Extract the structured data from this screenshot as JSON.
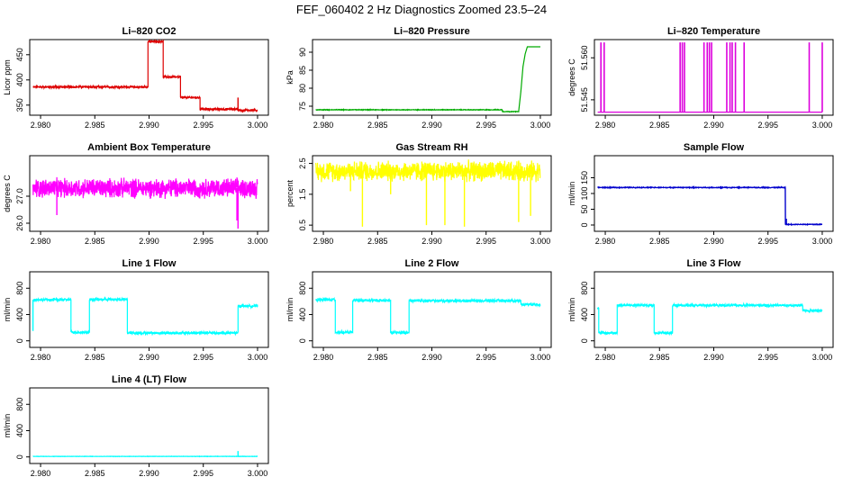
{
  "page_title": "FEF_060402  2 Hz Diagnostics Zoomed 23.5–24",
  "chart_data": [
    {
      "type": "line",
      "title": "Li–820 CO2",
      "ylabel": "Licor ppm",
      "color": "#dd0000",
      "xlim": [
        2.979,
        3.001
      ],
      "ylim": [
        330,
        480
      ],
      "xticks": [
        2.98,
        2.985,
        2.99,
        2.995,
        3.0
      ],
      "xticklabels": [
        "2.980",
        "2.985",
        "2.990",
        "2.995",
        "3.000"
      ],
      "yticks": [
        350,
        400,
        450
      ],
      "yticklabels": [
        "350",
        "400",
        "450"
      ],
      "noise": 2.5,
      "segments": [
        [
          2.9793,
          2.9899,
          386
        ],
        [
          2.9899,
          2.9913,
          476
        ],
        [
          2.9913,
          2.9929,
          406
        ],
        [
          2.9929,
          2.9947,
          365
        ],
        [
          2.9947,
          2.9982,
          342
        ],
        [
          2.9982,
          3.0,
          340
        ]
      ],
      "spikes": [
        [
          2.9982,
          365
        ]
      ]
    },
    {
      "type": "line",
      "title": "Li–820 Pressure",
      "ylabel": "kPa",
      "color": "#00aa00",
      "xlim": [
        2.979,
        3.001
      ],
      "ylim": [
        72.5,
        93.5
      ],
      "xticks": [
        2.98,
        2.985,
        2.99,
        2.995,
        3.0
      ],
      "xticklabels": [
        "2.980",
        "2.985",
        "2.990",
        "2.995",
        "3.000"
      ],
      "yticks": [
        75,
        80,
        85,
        90
      ],
      "yticklabels": [
        "75",
        "80",
        "85",
        "90"
      ],
      "noise": 0.1,
      "segments": [
        [
          2.9793,
          2.9965,
          74
        ],
        [
          2.9965,
          2.998,
          73.5
        ]
      ],
      "ramp": [
        [
          2.998,
          73.5
        ],
        [
          2.9982,
          79
        ],
        [
          2.9984,
          86
        ],
        [
          2.9986,
          89.5
        ],
        [
          2.9988,
          91.5
        ],
        [
          3.0,
          91.5
        ]
      ]
    },
    {
      "type": "line",
      "title": "Li–820 Temperature",
      "ylabel": "degrees C",
      "color": "#dd00dd",
      "xlim": [
        2.979,
        3.001
      ],
      "ylim": [
        51.5395,
        51.5665
      ],
      "xticks": [
        2.98,
        2.985,
        2.99,
        2.995,
        3.0
      ],
      "xticklabels": [
        "2.980",
        "2.985",
        "2.990",
        "2.995",
        "3.000"
      ],
      "yticks": [
        51.545,
        51.56
      ],
      "yticklabels": [
        "51.545",
        "51.560"
      ],
      "noise": 0,
      "segments": [
        [
          2.9793,
          3.0,
          51.5406
        ]
      ],
      "pulses": [
        2.9796,
        2.9799,
        2.9869,
        2.9871,
        2.9873,
        2.9891,
        2.9894,
        2.9896,
        2.9898,
        2.9912,
        2.9915,
        2.9917,
        2.992,
        2.9928,
        2.9988,
        3.0
      ],
      "pulse_top": 51.5655
    },
    {
      "type": "line",
      "title": "Ambient Box Temperature",
      "ylabel": "degrees C",
      "color": "#ff00ff",
      "xlim": [
        2.979,
        3.001
      ],
      "ylim": [
        25.7,
        28.5
      ],
      "xticks": [
        2.98,
        2.985,
        2.99,
        2.995,
        3.0
      ],
      "xticklabels": [
        "2.980",
        "2.985",
        "2.990",
        "2.995",
        "3.000"
      ],
      "yticks": [
        26.0,
        27.0
      ],
      "yticklabels": [
        "26.0",
        "27.0"
      ],
      "noise": 0.42,
      "segments": [
        [
          2.9793,
          3.0,
          27.3
        ]
      ],
      "spikes": [
        [
          2.9815,
          26.3
        ],
        [
          2.9981,
          26.1
        ],
        [
          2.9982,
          25.8
        ]
      ]
    },
    {
      "type": "line",
      "title": "Gas Stream RH",
      "ylabel": "percent",
      "color": "#ffff00",
      "xlim": [
        2.979,
        3.001
      ],
      "ylim": [
        0.3,
        2.75
      ],
      "xticks": [
        2.98,
        2.985,
        2.99,
        2.995,
        3.0
      ],
      "xticklabels": [
        "2.980",
        "2.985",
        "2.990",
        "2.995",
        "3.000"
      ],
      "yticks": [
        0.5,
        1.5,
        2.5
      ],
      "yticklabels": [
        "0.5",
        "1.5",
        "2.5"
      ],
      "noise": 0.38,
      "segments": [
        [
          2.9793,
          3.0,
          2.25
        ]
      ],
      "spikes": [
        [
          2.9836,
          0.45
        ],
        [
          2.9895,
          0.5
        ],
        [
          2.9912,
          0.5
        ],
        [
          2.993,
          0.45
        ],
        [
          2.998,
          0.6
        ],
        [
          2.9991,
          0.8
        ],
        [
          2.9862,
          1.5
        ],
        [
          2.9825,
          1.6
        ]
      ]
    },
    {
      "type": "line",
      "title": "Sample Flow",
      "ylabel": "ml/min",
      "color": "#0000cc",
      "xlim": [
        2.979,
        3.001
      ],
      "ylim": [
        -20,
        220
      ],
      "xticks": [
        2.98,
        2.985,
        2.99,
        2.995,
        3.0
      ],
      "xticklabels": [
        "2.980",
        "2.985",
        "2.990",
        "2.995",
        "3.000"
      ],
      "yticks": [
        0,
        50,
        100,
        150
      ],
      "yticklabels": [
        "0",
        "50",
        "100",
        "150"
      ],
      "noise": 1.5,
      "segments": [
        [
          2.9793,
          2.9966,
          119
        ],
        [
          2.9966,
          3.0,
          2
        ]
      ],
      "ramp": [
        [
          2.9966,
          119
        ],
        [
          2.9967,
          20
        ],
        [
          2.997,
          4
        ]
      ]
    },
    {
      "type": "line",
      "title": "Line 1 Flow",
      "ylabel": "ml/min",
      "color": "#00ffff",
      "xlim": [
        2.979,
        3.001
      ],
      "ylim": [
        -100,
        1050
      ],
      "xticks": [
        2.98,
        2.985,
        2.99,
        2.995,
        3.0
      ],
      "xticklabels": [
        "2.980",
        "2.985",
        "2.990",
        "2.995",
        "3.000"
      ],
      "yticks": [
        0,
        400,
        800
      ],
      "yticklabels": [
        "0",
        "400",
        "800"
      ],
      "noise": 25,
      "segments": [
        [
          2.9793,
          2.9828,
          625
        ],
        [
          2.9828,
          2.9845,
          130
        ],
        [
          2.9845,
          2.988,
          630
        ],
        [
          2.988,
          2.9982,
          120
        ],
        [
          2.9982,
          3.0,
          530
        ]
      ],
      "spikes": [
        [
          2.9793,
          150
        ]
      ]
    },
    {
      "type": "line",
      "title": "Line 2 Flow",
      "ylabel": "ml/min",
      "color": "#00ffff",
      "xlim": [
        2.979,
        3.001
      ],
      "ylim": [
        -100,
        1050
      ],
      "xticks": [
        2.98,
        2.985,
        2.99,
        2.995,
        3.0
      ],
      "xticklabels": [
        "2.980",
        "2.985",
        "2.990",
        "2.995",
        "3.000"
      ],
      "yticks": [
        0,
        400,
        800
      ],
      "yticklabels": [
        "0",
        "400",
        "800"
      ],
      "noise": 25,
      "segments": [
        [
          2.9793,
          2.9811,
          625
        ],
        [
          2.9811,
          2.9827,
          130
        ],
        [
          2.9827,
          2.9862,
          615
        ],
        [
          2.9862,
          2.9879,
          125
        ],
        [
          2.9879,
          2.9982,
          610
        ],
        [
          2.9982,
          3.0,
          555
        ]
      ]
    },
    {
      "type": "line",
      "title": "Line 3 Flow",
      "ylabel": "ml/min",
      "color": "#00ffff",
      "xlim": [
        2.979,
        3.001
      ],
      "ylim": [
        -100,
        1050
      ],
      "xticks": [
        2.98,
        2.985,
        2.99,
        2.995,
        3.0
      ],
      "xticklabels": [
        "2.980",
        "2.985",
        "2.990",
        "2.995",
        "3.000"
      ],
      "yticks": [
        0,
        400,
        800
      ],
      "yticklabels": [
        "0",
        "400",
        "800"
      ],
      "noise": 25,
      "segments": [
        [
          2.9793,
          2.9794,
          500
        ],
        [
          2.9794,
          2.9811,
          120
        ],
        [
          2.9811,
          2.9845,
          540
        ],
        [
          2.9845,
          2.9862,
          120
        ],
        [
          2.9862,
          2.9982,
          540
        ],
        [
          2.9982,
          3.0,
          460
        ]
      ]
    },
    {
      "type": "line",
      "title": "Line 4 (LT) Flow",
      "ylabel": "ml/min",
      "color": "#00ffff",
      "xlim": [
        2.979,
        3.001
      ],
      "ylim": [
        -100,
        1050
      ],
      "xticks": [
        2.98,
        2.985,
        2.99,
        2.995,
        3.0
      ],
      "xticklabels": [
        "2.980",
        "2.985",
        "2.990",
        "2.995",
        "3.000"
      ],
      "yticks": [
        0,
        400,
        800
      ],
      "yticklabels": [
        "0",
        "400",
        "800"
      ],
      "noise": 3,
      "segments": [
        [
          2.9793,
          3.0,
          8
        ]
      ],
      "spikes": [
        [
          2.9982,
          90
        ]
      ]
    }
  ]
}
